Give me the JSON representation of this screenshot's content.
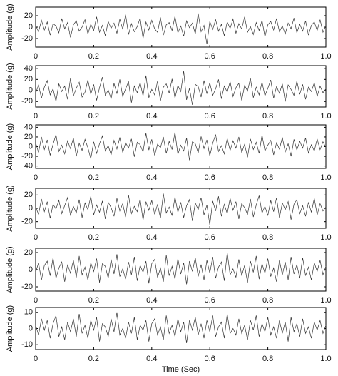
{
  "chart_data": [
    {
      "type": "line",
      "ylabel": "Amplitude (g)",
      "color": "#333333",
      "x": [
        0,
        0.01,
        0.02,
        0.03,
        0.04,
        0.05,
        0.06,
        0.07,
        0.08,
        0.09,
        0.1,
        0.11,
        0.12,
        0.13,
        0.14,
        0.15,
        0.16,
        0.17,
        0.18,
        0.19,
        0.2,
        0.21,
        0.22,
        0.23,
        0.24,
        0.25,
        0.26,
        0.27,
        0.28,
        0.29,
        0.3,
        0.31,
        0.32,
        0.33,
        0.34,
        0.35,
        0.36,
        0.37,
        0.38,
        0.39,
        0.4,
        0.41,
        0.42,
        0.43,
        0.44,
        0.45,
        0.46,
        0.47,
        0.48,
        0.49,
        0.5,
        0.51,
        0.52,
        0.53,
        0.54,
        0.55,
        0.56,
        0.57,
        0.58,
        0.59,
        0.6,
        0.61,
        0.62,
        0.63,
        0.64,
        0.65,
        0.66,
        0.67,
        0.68,
        0.69,
        0.7,
        0.71,
        0.72,
        0.73,
        0.74,
        0.75,
        0.76,
        0.77,
        0.78,
        0.79,
        0.8,
        0.81,
        0.82,
        0.83,
        0.84,
        0.85,
        0.86,
        0.87,
        0.88,
        0.89,
        0.9,
        0.91,
        0.92,
        0.93,
        0.94,
        0.95,
        0.96,
        0.97,
        0.98,
        0.99,
        1
      ],
      "values": [
        3,
        -8,
        12,
        -5,
        9,
        -14,
        6,
        2,
        -10,
        15,
        -3,
        8,
        -18,
        4,
        11,
        -7,
        0,
        13,
        -12,
        5,
        -6,
        18,
        -9,
        3,
        -15,
        10,
        -2,
        7,
        -11,
        14,
        -4,
        22,
        -13,
        6,
        -8,
        1,
        16,
        -20,
        9,
        -5,
        12,
        -3,
        -9,
        17,
        -14,
        4,
        8,
        -6,
        19,
        -10,
        2,
        -16,
        11,
        -1,
        7,
        -12,
        24,
        -8,
        3,
        -30,
        10,
        -4,
        13,
        -7,
        5,
        -15,
        9,
        -2,
        14,
        -11,
        6,
        -3,
        18,
        -9,
        1,
        -13,
        8,
        -6,
        12,
        -17,
        4,
        10,
        -5,
        15,
        -8,
        2,
        -12,
        7,
        -3,
        16,
        -10,
        5,
        -7,
        11,
        -14,
        3,
        9,
        -6,
        13,
        -9,
        2
      ],
      "xlim": [
        0,
        1
      ],
      "xticks": [
        0,
        0.2,
        0.4,
        0.6,
        0.8,
        {
          "value": 1,
          "label": "1.0"
        }
      ],
      "ylim": [
        -35,
        35
      ],
      "yticks": [
        -20,
        0,
        20
      ]
    },
    {
      "type": "line",
      "ylabel": "Amplitude (g)",
      "color": "#333333",
      "x": [
        0,
        0.01,
        0.02,
        0.03,
        0.04,
        0.05,
        0.06,
        0.07,
        0.08,
        0.09,
        0.1,
        0.11,
        0.12,
        0.13,
        0.14,
        0.15,
        0.16,
        0.17,
        0.18,
        0.19,
        0.2,
        0.21,
        0.22,
        0.23,
        0.24,
        0.25,
        0.26,
        0.27,
        0.28,
        0.29,
        0.3,
        0.31,
        0.32,
        0.33,
        0.34,
        0.35,
        0.36,
        0.37,
        0.38,
        0.39,
        0.4,
        0.41,
        0.42,
        0.43,
        0.44,
        0.45,
        0.46,
        0.47,
        0.48,
        0.49,
        0.5,
        0.51,
        0.52,
        0.53,
        0.54,
        0.55,
        0.56,
        0.57,
        0.58,
        0.59,
        0.6,
        0.61,
        0.62,
        0.63,
        0.64,
        0.65,
        0.66,
        0.67,
        0.68,
        0.69,
        0.7,
        0.71,
        0.72,
        0.73,
        0.74,
        0.75,
        0.76,
        0.77,
        0.78,
        0.79,
        0.8,
        0.81,
        0.82,
        0.83,
        0.84,
        0.85,
        0.86,
        0.87,
        0.88,
        0.89,
        0.9,
        0.91,
        0.92,
        0.93,
        0.94,
        0.95,
        0.96,
        0.97,
        0.98,
        0.99,
        1
      ],
      "values": [
        -5,
        10,
        -14,
        6,
        18,
        -8,
        3,
        -20,
        12,
        -2,
        8,
        -16,
        22,
        -10,
        4,
        15,
        -12,
        -3,
        19,
        -7,
        11,
        -18,
        5,
        24,
        -9,
        1,
        -15,
        13,
        -6,
        20,
        -11,
        3,
        16,
        -22,
        8,
        -4,
        14,
        -10,
        27,
        -13,
        2,
        -8,
        17,
        -19,
        6,
        12,
        -5,
        21,
        -14,
        9,
        -2,
        35,
        -17,
        4,
        -26,
        11,
        7,
        -12,
        18,
        -6,
        14,
        -9,
        3,
        20,
        -15,
        8,
        -3,
        16,
        -11,
        5,
        13,
        -18,
        9,
        -1,
        22,
        -13,
        6,
        -8,
        15,
        -10,
        4,
        19,
        -14,
        7,
        -5,
        12,
        -20,
        10,
        2,
        -9,
        17,
        -7,
        11,
        -16,
        6,
        -2,
        14,
        -11,
        8,
        -4,
        3
      ],
      "xlim": [
        0,
        1
      ],
      "xticks": [
        0,
        0.2,
        0.4,
        0.6,
        0.8,
        {
          "value": 1,
          "label": "1.0"
        }
      ],
      "ylim": [
        -30,
        45
      ],
      "yticks": [
        -20,
        0,
        20,
        40
      ]
    },
    {
      "type": "line",
      "ylabel": "Amplitude (g)",
      "color": "#333333",
      "x": [
        0,
        0.01,
        0.02,
        0.03,
        0.04,
        0.05,
        0.06,
        0.07,
        0.08,
        0.09,
        0.1,
        0.11,
        0.12,
        0.13,
        0.14,
        0.15,
        0.16,
        0.17,
        0.18,
        0.19,
        0.2,
        0.21,
        0.22,
        0.23,
        0.24,
        0.25,
        0.26,
        0.27,
        0.28,
        0.29,
        0.3,
        0.31,
        0.32,
        0.33,
        0.34,
        0.35,
        0.36,
        0.37,
        0.38,
        0.39,
        0.4,
        0.41,
        0.42,
        0.43,
        0.44,
        0.45,
        0.46,
        0.47,
        0.48,
        0.49,
        0.5,
        0.51,
        0.52,
        0.53,
        0.54,
        0.55,
        0.56,
        0.57,
        0.58,
        0.59,
        0.6,
        0.61,
        0.62,
        0.63,
        0.64,
        0.65,
        0.66,
        0.67,
        0.68,
        0.69,
        0.7,
        0.71,
        0.72,
        0.73,
        0.74,
        0.75,
        0.76,
        0.77,
        0.78,
        0.79,
        0.8,
        0.81,
        0.82,
        0.83,
        0.84,
        0.85,
        0.86,
        0.87,
        0.88,
        0.89,
        0.9,
        0.91,
        0.92,
        0.93,
        0.94,
        0.95,
        0.96,
        0.97,
        0.98,
        0.99,
        1
      ],
      "values": [
        8,
        -12,
        20,
        -6,
        14,
        -18,
        5,
        25,
        -10,
        3,
        -15,
        12,
        -4,
        18,
        -20,
        7,
        -8,
        15,
        -2,
        -25,
        10,
        -14,
        6,
        22,
        -9,
        2,
        -17,
        13,
        -5,
        19,
        -12,
        8,
        -3,
        16,
        -21,
        9,
        4,
        -11,
        28,
        -7,
        15,
        -18,
        5,
        -2,
        20,
        -14,
        11,
        -6,
        30,
        -16,
        3,
        -9,
        18,
        -28,
        10,
        6,
        -13,
        21,
        -4,
        14,
        -19,
        7,
        25,
        -10,
        2,
        -15,
        17,
        -8,
        12,
        -3,
        20,
        -12,
        5,
        -22,
        16,
        -6,
        9,
        -14,
        24,
        -9,
        3,
        13,
        -17,
        8,
        -5,
        19,
        -11,
        6,
        -20,
        15,
        -7,
        11,
        -3,
        18,
        -13,
        4,
        -9,
        16,
        -6,
        10,
        -2
      ],
      "xlim": [
        0,
        1
      ],
      "xticks": [
        0,
        0.2,
        0.4,
        0.6,
        0.8,
        {
          "value": 1,
          "label": "1.0"
        }
      ],
      "ylim": [
        -45,
        45
      ],
      "yticks": [
        -40,
        -20,
        0,
        20,
        40
      ]
    },
    {
      "type": "line",
      "ylabel": "Amplitude (g)",
      "color": "#333333",
      "x": [
        0,
        0.01,
        0.02,
        0.03,
        0.04,
        0.05,
        0.06,
        0.07,
        0.08,
        0.09,
        0.1,
        0.11,
        0.12,
        0.13,
        0.14,
        0.15,
        0.16,
        0.17,
        0.18,
        0.19,
        0.2,
        0.21,
        0.22,
        0.23,
        0.24,
        0.25,
        0.26,
        0.27,
        0.28,
        0.29,
        0.3,
        0.31,
        0.32,
        0.33,
        0.34,
        0.35,
        0.36,
        0.37,
        0.38,
        0.39,
        0.4,
        0.41,
        0.42,
        0.43,
        0.44,
        0.45,
        0.46,
        0.47,
        0.48,
        0.49,
        0.5,
        0.51,
        0.52,
        0.53,
        0.54,
        0.55,
        0.56,
        0.57,
        0.58,
        0.59,
        0.6,
        0.61,
        0.62,
        0.63,
        0.64,
        0.65,
        0.66,
        0.67,
        0.68,
        0.69,
        0.7,
        0.71,
        0.72,
        0.73,
        0.74,
        0.75,
        0.76,
        0.77,
        0.78,
        0.79,
        0.8,
        0.81,
        0.82,
        0.83,
        0.84,
        0.85,
        0.86,
        0.87,
        0.88,
        0.89,
        0.9,
        0.91,
        0.92,
        0.93,
        0.94,
        0.95,
        0.96,
        0.97,
        0.98,
        0.99,
        1
      ],
      "values": [
        2,
        -9,
        14,
        -5,
        10,
        -15,
        6,
        -1,
        12,
        -8,
        4,
        16,
        -11,
        3,
        -7,
        13,
        -14,
        8,
        -2,
        18,
        -10,
        5,
        -6,
        11,
        -16,
        9,
        1,
        -12,
        15,
        -4,
        7,
        -13,
        20,
        -8,
        3,
        -5,
        14,
        -18,
        10,
        -3,
        12,
        -9,
        6,
        -15,
        22,
        -7,
        2,
        -11,
        17,
        -6,
        9,
        -14,
        4,
        13,
        -19,
        8,
        -2,
        16,
        -10,
        5,
        -25,
        11,
        -4,
        18,
        -12,
        6,
        -8,
        15,
        -3,
        10,
        -16,
        7,
        1,
        -9,
        14,
        -13,
        5,
        19,
        -7,
        3,
        -11,
        12,
        -5,
        16,
        -14,
        8,
        -2,
        10,
        -17,
        6,
        13,
        -8,
        4,
        -12,
        9,
        -6,
        15,
        -10,
        7,
        -4,
        2
      ],
      "xlim": [
        0,
        1
      ],
      "xticks": [
        0,
        0.2,
        0.4,
        0.6,
        0.8,
        {
          "value": 1,
          "label": "1.0"
        }
      ],
      "ylim": [
        -30,
        30
      ],
      "yticks": [
        -20,
        0,
        20
      ]
    },
    {
      "type": "line",
      "ylabel": "Amplitude (g)",
      "color": "#333333",
      "x": [
        0,
        0.01,
        0.02,
        0.03,
        0.04,
        0.05,
        0.06,
        0.07,
        0.08,
        0.09,
        0.1,
        0.11,
        0.12,
        0.13,
        0.14,
        0.15,
        0.16,
        0.17,
        0.18,
        0.19,
        0.2,
        0.21,
        0.22,
        0.23,
        0.24,
        0.25,
        0.26,
        0.27,
        0.28,
        0.29,
        0.3,
        0.31,
        0.32,
        0.33,
        0.34,
        0.35,
        0.36,
        0.37,
        0.38,
        0.39,
        0.4,
        0.41,
        0.42,
        0.43,
        0.44,
        0.45,
        0.46,
        0.47,
        0.48,
        0.49,
        0.5,
        0.51,
        0.52,
        0.53,
        0.54,
        0.55,
        0.56,
        0.57,
        0.58,
        0.59,
        0.6,
        0.61,
        0.62,
        0.63,
        0.64,
        0.65,
        0.66,
        0.67,
        0.68,
        0.69,
        0.7,
        0.71,
        0.72,
        0.73,
        0.74,
        0.75,
        0.76,
        0.77,
        0.78,
        0.79,
        0.8,
        0.81,
        0.82,
        0.83,
        0.84,
        0.85,
        0.86,
        0.87,
        0.88,
        0.89,
        0.9,
        0.91,
        0.92,
        0.93,
        0.94,
        0.95,
        0.96,
        0.97,
        0.98,
        0.99,
        1
      ],
      "values": [
        -3,
        8,
        -12,
        5,
        10,
        -7,
        14,
        -10,
        2,
        9,
        -14,
        6,
        -4,
        11,
        -9,
        16,
        -6,
        3,
        -12,
        8,
        -2,
        13,
        -15,
        7,
        4,
        -10,
        12,
        -5,
        18,
        -8,
        1,
        -11,
        9,
        -6,
        15,
        -13,
        5,
        -3,
        10,
        -16,
        7,
        12,
        -9,
        2,
        -14,
        17,
        -7,
        4,
        -11,
        13,
        -5,
        8,
        -17,
        10,
        -2,
        14,
        -8,
        6,
        -12,
        11,
        -4,
        15,
        -10,
        3,
        9,
        -13,
        20,
        -6,
        1,
        -9,
        12,
        -7,
        5,
        -15,
        10,
        -3,
        16,
        -11,
        7,
        -4,
        13,
        -8,
        2,
        -14,
        11,
        -6,
        9,
        -12,
        15,
        -5,
        6,
        -10,
        14,
        -7,
        3,
        -12,
        8,
        -2,
        11,
        -6,
        4
      ],
      "xlim": [
        0,
        1
      ],
      "xticks": [
        0,
        0.2,
        0.4,
        0.6,
        0.8,
        {
          "value": 1,
          "label": "1.0"
        }
      ],
      "ylim": [
        -25,
        25
      ],
      "yticks": [
        -20,
        0,
        20
      ]
    },
    {
      "type": "line",
      "ylabel": "Amplitude (g)",
      "xlabel": "Time (Sec)",
      "color": "#333333",
      "x": [
        0,
        0.01,
        0.02,
        0.03,
        0.04,
        0.05,
        0.06,
        0.07,
        0.08,
        0.09,
        0.1,
        0.11,
        0.12,
        0.13,
        0.14,
        0.15,
        0.16,
        0.17,
        0.18,
        0.19,
        0.2,
        0.21,
        0.22,
        0.23,
        0.24,
        0.25,
        0.26,
        0.27,
        0.28,
        0.29,
        0.3,
        0.31,
        0.32,
        0.33,
        0.34,
        0.35,
        0.36,
        0.37,
        0.38,
        0.39,
        0.4,
        0.41,
        0.42,
        0.43,
        0.44,
        0.45,
        0.46,
        0.47,
        0.48,
        0.49,
        0.5,
        0.51,
        0.52,
        0.53,
        0.54,
        0.55,
        0.56,
        0.57,
        0.58,
        0.59,
        0.6,
        0.61,
        0.62,
        0.63,
        0.64,
        0.65,
        0.66,
        0.67,
        0.68,
        0.69,
        0.7,
        0.71,
        0.72,
        0.73,
        0.74,
        0.75,
        0.76,
        0.77,
        0.78,
        0.79,
        0.8,
        0.81,
        0.82,
        0.83,
        0.84,
        0.85,
        0.86,
        0.87,
        0.88,
        0.89,
        0.9,
        0.91,
        0.92,
        0.93,
        0.94,
        0.95,
        0.96,
        0.97,
        0.98,
        0.99,
        1
      ],
      "values": [
        2,
        -4,
        6,
        -1,
        5,
        -6,
        3,
        8,
        -5,
        1,
        -7,
        4,
        -2,
        6,
        -5,
        9,
        -3,
        2,
        -6,
        5,
        -1,
        7,
        -8,
        3,
        1,
        -5,
        6,
        -2,
        10,
        -4,
        0,
        -6,
        4,
        -3,
        7,
        -7,
        2,
        -1,
        5,
        -8,
        3,
        6,
        -4,
        1,
        -7,
        8,
        -3,
        2,
        -5,
        6,
        -2,
        4,
        -9,
        5,
        -1,
        7,
        -4,
        3,
        -6,
        5,
        -2,
        8,
        -5,
        1,
        4,
        -6,
        9,
        -3,
        0,
        -4,
        6,
        -3,
        2,
        -7,
        5,
        -1,
        8,
        -5,
        3,
        -2,
        7,
        -4,
        1,
        -6,
        5,
        -3,
        4,
        -8,
        7,
        -2,
        3,
        -5,
        6,
        -3,
        1,
        -6,
        4,
        -1,
        5,
        -3,
        2
      ],
      "xlim": [
        0,
        1
      ],
      "xticks": [
        0,
        0.2,
        0.4,
        0.6,
        0.8,
        {
          "value": 1,
          "label": "1.0"
        }
      ],
      "ylim": [
        -13,
        13
      ],
      "yticks": [
        -10,
        0,
        10
      ]
    }
  ]
}
